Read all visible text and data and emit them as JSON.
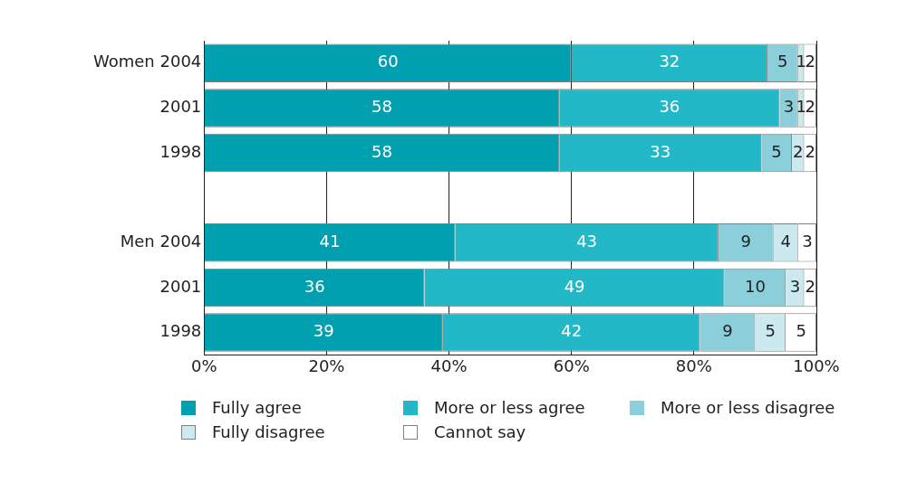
{
  "chart_data": {
    "type": "bar",
    "orientation": "horizontal",
    "stacked": true,
    "categories": [
      "Women 2004",
      "2001",
      "1998",
      null,
      "Men 2004",
      "2001",
      "1998"
    ],
    "series": [
      {
        "name": "Fully agree",
        "color": "#00a0b0",
        "values": [
          60,
          58,
          58,
          null,
          41,
          36,
          39
        ]
      },
      {
        "name": "More or less agree",
        "color": "#22b8c8",
        "values": [
          32,
          36,
          33,
          null,
          43,
          49,
          42
        ]
      },
      {
        "name": "More or less disagree",
        "color": "#8acfd9",
        "values": [
          5,
          3,
          5,
          null,
          9,
          10,
          9
        ]
      },
      {
        "name": "Fully disagree",
        "color": "#cce9ef",
        "values": [
          1,
          1,
          2,
          null,
          4,
          3,
          5
        ]
      },
      {
        "name": "Cannot say",
        "color": "#ffffff",
        "values": [
          2,
          2,
          2,
          null,
          3,
          2,
          5
        ]
      }
    ],
    "xlim": [
      0,
      100
    ],
    "xticks": [
      {
        "value": 0,
        "label": "0%"
      },
      {
        "value": 20,
        "label": "20%"
      },
      {
        "value": 40,
        "label": "40%"
      },
      {
        "value": 60,
        "label": "60%"
      },
      {
        "value": 80,
        "label": "80%"
      },
      {
        "value": 100,
        "label": "100%"
      }
    ],
    "grid": "x",
    "legend": "bottom",
    "data_labels": true
  }
}
